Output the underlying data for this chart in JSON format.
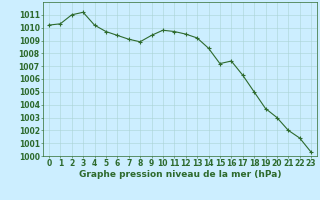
{
  "x": [
    0,
    1,
    2,
    3,
    4,
    5,
    6,
    7,
    8,
    9,
    10,
    11,
    12,
    13,
    14,
    15,
    16,
    17,
    18,
    19,
    20,
    21,
    22,
    23
  ],
  "y": [
    1010.2,
    1010.3,
    1011.0,
    1011.2,
    1010.2,
    1009.7,
    1009.4,
    1009.1,
    1008.9,
    1009.4,
    1009.8,
    1009.7,
    1009.5,
    1009.2,
    1008.4,
    1007.2,
    1007.4,
    1006.3,
    1005.0,
    1003.7,
    1003.0,
    1002.0,
    1001.4,
    1000.3
  ],
  "line_color": "#2d6a2d",
  "marker_color": "#2d6a2d",
  "bg_color": "#cceeff",
  "grid_color": "#aad4d4",
  "xlabel": "Graphe pression niveau de la mer (hPa)",
  "ylim": [
    1000,
    1012
  ],
  "xlim_min": -0.5,
  "xlim_max": 23.5,
  "yticks": [
    1000,
    1001,
    1002,
    1003,
    1004,
    1005,
    1006,
    1007,
    1008,
    1009,
    1010,
    1011
  ],
  "xticks": [
    0,
    1,
    2,
    3,
    4,
    5,
    6,
    7,
    8,
    9,
    10,
    11,
    12,
    13,
    14,
    15,
    16,
    17,
    18,
    19,
    20,
    21,
    22,
    23
  ],
  "xlabel_fontsize": 6.5,
  "tick_fontsize": 5.5,
  "xlabel_color": "#2d6a2d",
  "tick_color": "#2d6a2d",
  "label_fontweight": "bold",
  "line_width": 0.8,
  "marker_size": 3.0,
  "marker_style": "+"
}
